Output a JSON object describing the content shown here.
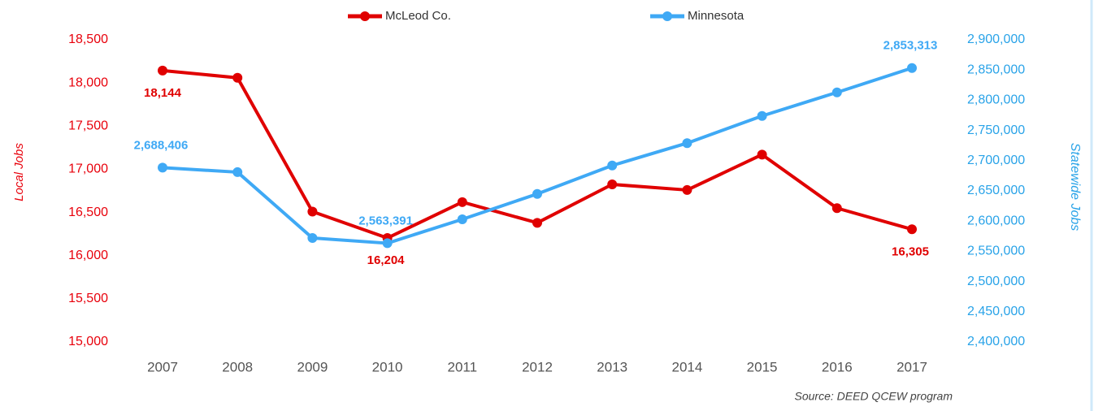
{
  "chart_data": {
    "type": "line",
    "categories": [
      "2007",
      "2008",
      "2009",
      "2010",
      "2011",
      "2012",
      "2013",
      "2014",
      "2015",
      "2016",
      "2017"
    ],
    "series": [
      {
        "name": "McLeod Co.",
        "color": "#e00000",
        "axis": "y",
        "values": [
          18144,
          18060,
          16510,
          16204,
          16620,
          16380,
          16825,
          16760,
          17170,
          16550,
          16305
        ],
        "value_labels": [
          "18,144",
          null,
          null,
          "16,204",
          null,
          null,
          null,
          null,
          null,
          null,
          "16,305"
        ]
      },
      {
        "name": "Minnesota",
        "color": "#3fa9f5",
        "axis": "y2",
        "values": [
          2688406,
          2681000,
          2572000,
          2563391,
          2603000,
          2645000,
          2692000,
          2729000,
          2774000,
          2813000,
          2853313
        ],
        "value_labels": [
          "2,688,406",
          null,
          null,
          "2,563,391",
          null,
          null,
          null,
          null,
          null,
          null,
          "2,853,313"
        ]
      }
    ],
    "ylabel": "Local Jobs",
    "y2label": "Statewide Jobs",
    "ylim": [
      15000,
      18500
    ],
    "yticks": [
      {
        "value": 15000,
        "label": "15,000"
      },
      {
        "value": 15500,
        "label": "15,500"
      },
      {
        "value": 16000,
        "label": "16,000"
      },
      {
        "value": 16500,
        "label": "16,500"
      },
      {
        "value": 17000,
        "label": "17,000"
      },
      {
        "value": 17500,
        "label": "17,500"
      },
      {
        "value": 18000,
        "label": "18,000"
      },
      {
        "value": 18500,
        "label": "18,500"
      }
    ],
    "y2lim": [
      2400000,
      2900000
    ],
    "y2ticks": [
      {
        "value": 2400000,
        "label": "2,400,000"
      },
      {
        "value": 2450000,
        "label": "2,450,000"
      },
      {
        "value": 2500000,
        "label": "2,500,000"
      },
      {
        "value": 2550000,
        "label": "2,550,000"
      },
      {
        "value": 2600000,
        "label": "2,600,000"
      },
      {
        "value": 2650000,
        "label": "2,650,000"
      },
      {
        "value": 2700000,
        "label": "2,700,000"
      },
      {
        "value": 2750000,
        "label": "2,750,000"
      },
      {
        "value": 2800000,
        "label": "2,800,000"
      },
      {
        "value": 2850000,
        "label": "2,850,000"
      },
      {
        "value": 2900000,
        "label": "2,900,000"
      }
    ],
    "source": "Source: DEED QCEW program",
    "legend": "top"
  }
}
